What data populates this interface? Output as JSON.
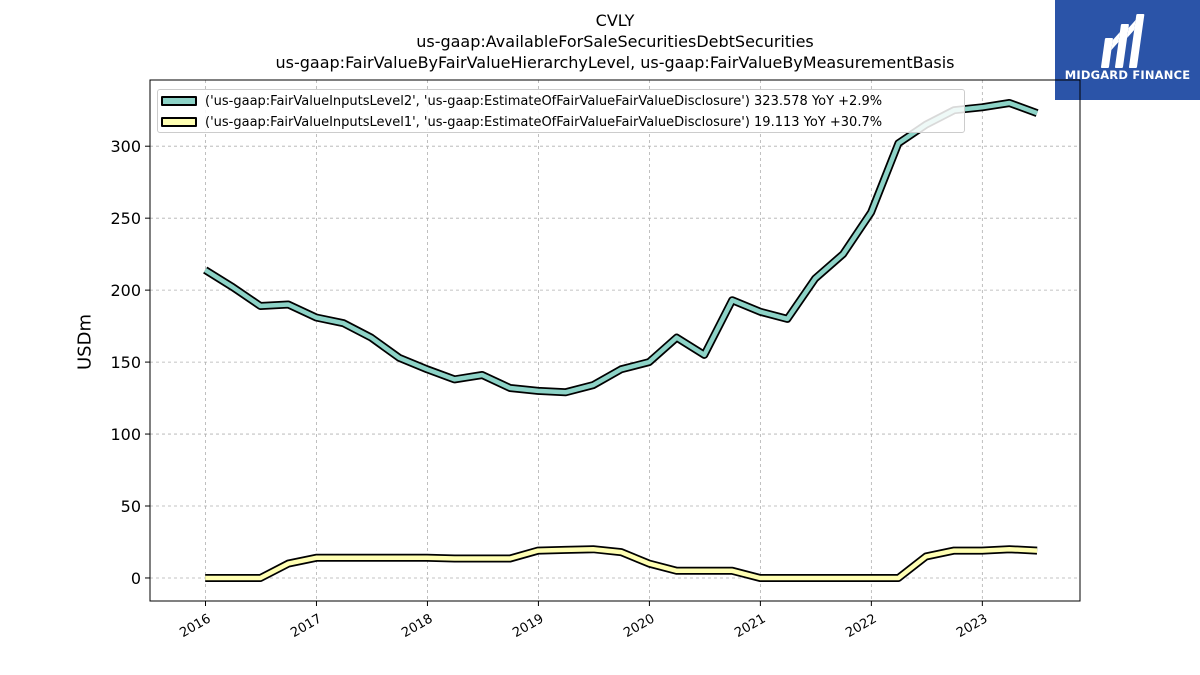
{
  "title": {
    "line1": "CVLY",
    "line2": "us-gaap:AvailableForSaleSecuritiesDebtSecurities",
    "line3": "us-gaap:FairValueByFairValueHierarchyLevel, us-gaap:FairValueByMeasurementBasis"
  },
  "logo": {
    "text": "MIDGARD FINANCE",
    "background": "#2b54a8"
  },
  "chart_data": {
    "type": "line",
    "ylabel": "USDm",
    "xlabel": "",
    "ylim": [
      -16,
      346
    ],
    "xlim": [
      2015.5,
      2023.88
    ],
    "yticks": [
      0,
      50,
      100,
      150,
      200,
      250,
      300
    ],
    "xticks": [
      "2016",
      "2017",
      "2018",
      "2019",
      "2020",
      "2021",
      "2022",
      "2023"
    ],
    "grid": true,
    "legend_position": "top-left",
    "series": [
      {
        "name": "('us-gaap:FairValueInputsLevel2', 'us-gaap:EstimateOfFairValueFairValueDisclosure') 323.578 YoY +2.9%",
        "color": "#8dd3c7",
        "points": [
          [
            "2015-12-31",
            214
          ],
          [
            "2016-03-31",
            202
          ],
          [
            "2016-06-30",
            189
          ],
          [
            "2016-09-30",
            190
          ],
          [
            "2016-12-31",
            181
          ],
          [
            "2017-03-31",
            177
          ],
          [
            "2017-06-30",
            167
          ],
          [
            "2017-09-30",
            153
          ],
          [
            "2017-12-31",
            145
          ],
          [
            "2018-03-31",
            138
          ],
          [
            "2018-06-30",
            141
          ],
          [
            "2018-09-30",
            132
          ],
          [
            "2018-12-31",
            130
          ],
          [
            "2019-03-31",
            129
          ],
          [
            "2019-06-30",
            134
          ],
          [
            "2019-09-30",
            145
          ],
          [
            "2019-12-31",
            150
          ],
          [
            "2020-03-31",
            167
          ],
          [
            "2020-06-30",
            155
          ],
          [
            "2020-09-30",
            193
          ],
          [
            "2020-12-31",
            185
          ],
          [
            "2021-03-31",
            180
          ],
          [
            "2021-06-30",
            208
          ],
          [
            "2021-09-30",
            225
          ],
          [
            "2021-12-31",
            254
          ],
          [
            "2022-03-31",
            302
          ],
          [
            "2022-06-30",
            315
          ],
          [
            "2022-09-30",
            325
          ],
          [
            "2022-12-31",
            327
          ],
          [
            "2023-03-31",
            330
          ],
          [
            "2023-06-30",
            323
          ]
        ]
      },
      {
        "name": "('us-gaap:FairValueInputsLevel1', 'us-gaap:EstimateOfFairValueFairValueDisclosure') 19.113 YoY +30.7%",
        "color": "#ffffb3",
        "points": [
          [
            "2015-12-31",
            0
          ],
          [
            "2016-03-31",
            0
          ],
          [
            "2016-06-30",
            0
          ],
          [
            "2016-09-30",
            10
          ],
          [
            "2016-12-31",
            14
          ],
          [
            "2017-03-31",
            14
          ],
          [
            "2017-06-30",
            14
          ],
          [
            "2017-09-30",
            14
          ],
          [
            "2017-12-31",
            14
          ],
          [
            "2018-03-31",
            13.5
          ],
          [
            "2018-06-30",
            13.5
          ],
          [
            "2018-09-30",
            13.5
          ],
          [
            "2018-12-31",
            19
          ],
          [
            "2019-03-31",
            19.5
          ],
          [
            "2019-06-30",
            20
          ],
          [
            "2019-09-30",
            18
          ],
          [
            "2019-12-31",
            10
          ],
          [
            "2020-03-31",
            5
          ],
          [
            "2020-06-30",
            5
          ],
          [
            "2020-09-30",
            5
          ],
          [
            "2020-12-31",
            0
          ],
          [
            "2021-03-31",
            0
          ],
          [
            "2021-06-30",
            0
          ],
          [
            "2021-09-30",
            0
          ],
          [
            "2021-12-31",
            0
          ],
          [
            "2022-03-31",
            0
          ],
          [
            "2022-06-30",
            15
          ],
          [
            "2022-09-30",
            19
          ],
          [
            "2022-12-31",
            19
          ],
          [
            "2023-03-31",
            20
          ],
          [
            "2023-06-30",
            19
          ]
        ]
      }
    ]
  }
}
